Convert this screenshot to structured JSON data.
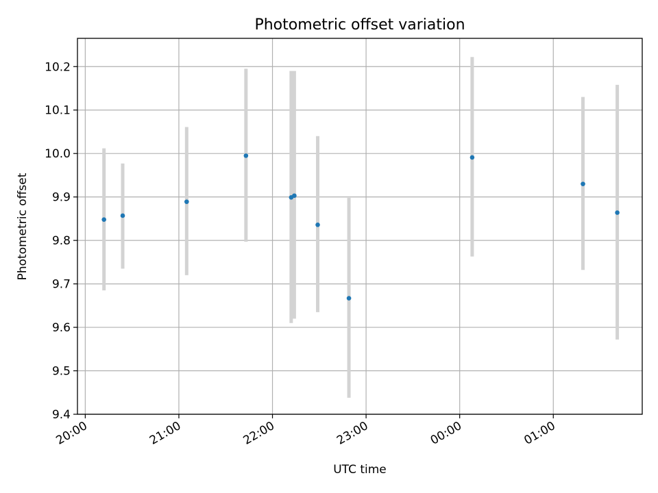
{
  "chart_data": {
    "type": "scatter",
    "title": "Photometric offset variation",
    "xlabel": "UTC time",
    "ylabel": "Photometric offset",
    "x_ticks": [
      "20:00",
      "21:00",
      "22:00",
      "23:00",
      "00:00",
      "01:00"
    ],
    "y_ticks": [
      "9.4",
      "9.5",
      "9.6",
      "9.7",
      "9.8",
      "9.9",
      "10.0",
      "10.1",
      "10.2"
    ],
    "ylim": [
      9.4,
      10.265
    ],
    "xlim": [
      "19:55",
      "01:57"
    ],
    "grid": true,
    "point_color": "#1f77b4",
    "errorbar_color": "#d3d3d3",
    "points": [
      {
        "x": "20:12",
        "y": 9.848,
        "y_low": 9.685,
        "y_high": 10.012
      },
      {
        "x": "20:24",
        "y": 9.857,
        "y_low": 9.735,
        "y_high": 9.977
      },
      {
        "x": "21:05",
        "y": 9.889,
        "y_low": 9.72,
        "y_high": 10.061
      },
      {
        "x": "21:43",
        "y": 9.995,
        "y_low": 9.797,
        "y_high": 10.195
      },
      {
        "x": "22:12",
        "y": 9.899,
        "y_low": 9.61,
        "y_high": 10.19
      },
      {
        "x": "22:14",
        "y": 9.903,
        "y_low": 9.62,
        "y_high": 10.19
      },
      {
        "x": "22:29",
        "y": 9.836,
        "y_low": 9.635,
        "y_high": 10.04
      },
      {
        "x": "22:49",
        "y": 9.667,
        "y_low": 9.438,
        "y_high": 9.898
      },
      {
        "x": "00:08",
        "y": 9.991,
        "y_low": 9.763,
        "y_high": 10.222
      },
      {
        "x": "01:19",
        "y": 9.93,
        "y_low": 9.732,
        "y_high": 10.13
      },
      {
        "x": "01:41",
        "y": 9.864,
        "y_low": 9.572,
        "y_high": 10.158
      }
    ]
  }
}
